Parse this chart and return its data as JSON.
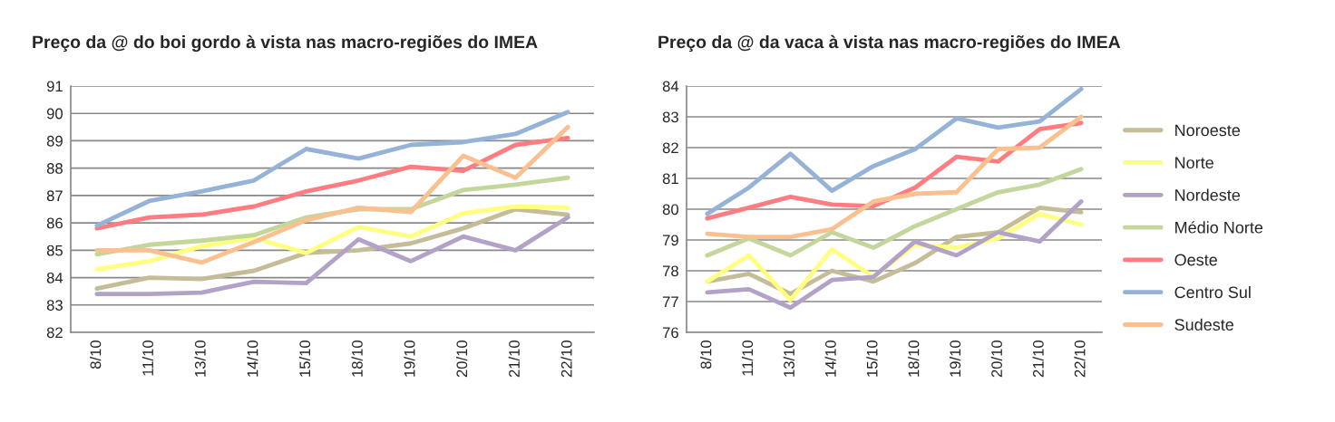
{
  "chart_data": [
    {
      "type": "line",
      "title": "Preço da @ do boi gordo à vista nas macro-regiões do IMEA",
      "categories": [
        "8/10",
        "11/10",
        "13/10",
        "14/10",
        "15/10",
        "18/10",
        "19/10",
        "20/10",
        "21/10",
        "22/10"
      ],
      "ylim": [
        82,
        91
      ],
      "yticks": [
        82,
        83,
        84,
        85,
        86,
        87,
        88,
        89,
        90,
        91
      ],
      "grid": "y",
      "legend": false,
      "marker": "none",
      "line_style": "solid",
      "series": [
        {
          "color": "#c4bd97",
          "values": [
            83.6,
            84.0,
            83.95,
            84.25,
            84.9,
            85.0,
            85.25,
            85.8,
            86.5,
            86.3
          ]
        },
        {
          "color": "#ffff80",
          "values": [
            84.3,
            84.6,
            85.15,
            85.45,
            84.9,
            85.85,
            85.5,
            86.35,
            86.6,
            86.55
          ]
        },
        {
          "color": "#b3a2c7",
          "values": [
            83.4,
            83.4,
            83.45,
            83.85,
            83.8,
            85.4,
            84.6,
            85.5,
            85.0,
            86.2
          ]
        },
        {
          "color": "#c3d69b",
          "values": [
            84.85,
            85.2,
            85.35,
            85.55,
            86.2,
            86.5,
            86.5,
            87.2,
            87.4,
            87.65
          ]
        },
        {
          "color": "#ff7c80",
          "values": [
            85.8,
            86.2,
            86.3,
            86.6,
            87.15,
            87.55,
            88.05,
            87.9,
            88.85,
            89.1
          ]
        },
        {
          "color": "#95b3d7",
          "values": [
            85.9,
            86.8,
            87.15,
            87.55,
            88.7,
            88.35,
            88.85,
            88.95,
            89.25,
            90.05
          ]
        },
        {
          "color": "#fac090",
          "values": [
            85.0,
            85.0,
            84.55,
            85.3,
            86.1,
            86.55,
            86.4,
            88.45,
            87.65,
            89.5
          ]
        }
      ]
    },
    {
      "type": "line",
      "title": "Preço da @ da vaca à vista nas macro-regiões do IMEA",
      "categories": [
        "8/10",
        "11/10",
        "13/10",
        "14/10",
        "15/10",
        "18/10",
        "19/10",
        "20/10",
        "21/10",
        "22/10"
      ],
      "ylim": [
        76,
        84
      ],
      "yticks": [
        76,
        77,
        78,
        79,
        80,
        81,
        82,
        83,
        84
      ],
      "grid": "y",
      "legend": "right",
      "marker": "none",
      "line_style": "solid",
      "series": [
        {
          "name": "Noroeste",
          "color": "#c4bd97",
          "values": [
            77.65,
            77.9,
            77.25,
            78.0,
            77.65,
            78.25,
            79.1,
            79.25,
            80.05,
            79.9
          ]
        },
        {
          "name": "Norte",
          "color": "#ffff80",
          "values": [
            77.65,
            78.5,
            77.05,
            78.7,
            77.8,
            78.85,
            78.75,
            79.05,
            79.85,
            79.5
          ]
        },
        {
          "name": "Nordeste",
          "color": "#b3a2c7",
          "values": [
            77.3,
            77.4,
            76.8,
            77.7,
            77.8,
            78.95,
            78.5,
            79.25,
            78.95,
            80.25
          ]
        },
        {
          "name": "Médio Norte",
          "color": "#c3d69b",
          "values": [
            78.5,
            79.05,
            78.5,
            79.25,
            78.75,
            79.45,
            80.0,
            80.55,
            80.8,
            81.3
          ]
        },
        {
          "name": "Oeste",
          "color": "#ff7c80",
          "values": [
            79.7,
            80.05,
            80.4,
            80.15,
            80.1,
            80.7,
            81.7,
            81.55,
            82.6,
            82.8
          ]
        },
        {
          "name": "Centro Sul",
          "color": "#95b3d7",
          "values": [
            79.85,
            80.7,
            81.8,
            80.6,
            81.4,
            81.95,
            82.95,
            82.65,
            82.85,
            83.9
          ]
        },
        {
          "name": "Sudeste",
          "color": "#fac090",
          "values": [
            79.2,
            79.1,
            79.1,
            79.35,
            80.25,
            80.5,
            80.55,
            81.95,
            82.0,
            83.0
          ]
        }
      ]
    }
  ]
}
